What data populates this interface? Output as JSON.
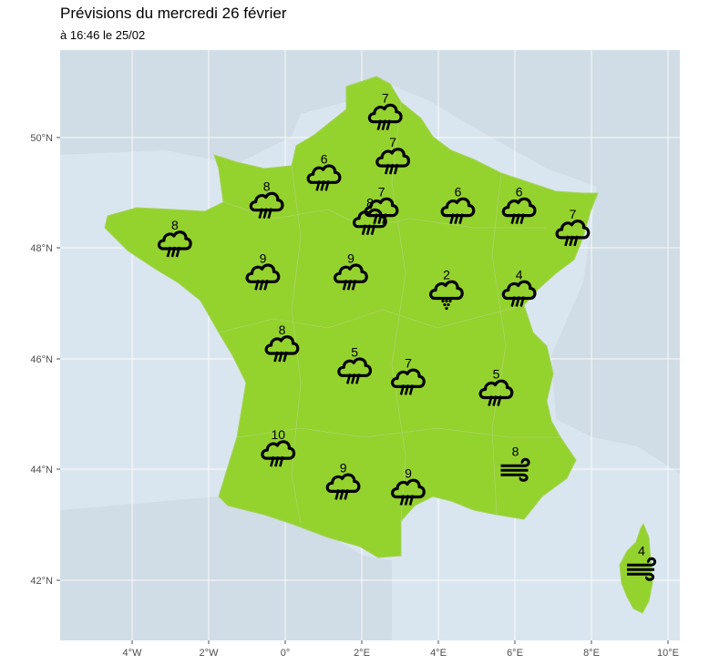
{
  "header": {
    "title": "Prévisions du mercredi 26 février",
    "subtitle": "à 16:46 le 25/02"
  },
  "colors": {
    "sea": "#dae6ef",
    "land_other": "#d0dde6",
    "france": "#94d22e",
    "border": "#a5d25c",
    "grid": "#ffffff",
    "icon": "#000000"
  },
  "axes": {
    "x_ticks": [
      "4°W",
      "2°W",
      "0°",
      "2°E",
      "4°E",
      "6°E",
      "8°E",
      "10°E"
    ],
    "y_ticks": [
      "42°N",
      "44°N",
      "46°N",
      "48°N",
      "50°N"
    ]
  },
  "map_data": {
    "type": "weather-map",
    "lon_range": [
      -5.9,
      10.3
    ],
    "lat_range": [
      40.9,
      51.6
    ],
    "stations": [
      {
        "lon": 2.6,
        "lat": 50.4,
        "value": "7",
        "icon": "rain-cloud-icon"
      },
      {
        "lon": 1.0,
        "lat": 49.3,
        "value": "6",
        "icon": "rain-cloud-icon"
      },
      {
        "lon": 2.8,
        "lat": 49.6,
        "value": "7",
        "icon": "rain-cloud-icon"
      },
      {
        "lon": -0.5,
        "lat": 48.8,
        "value": "8",
        "icon": "rain-cloud-icon"
      },
      {
        "lon": 2.2,
        "lat": 48.5,
        "value": "8",
        "icon": "rain-cloud-icon"
      },
      {
        "lon": 2.5,
        "lat": 48.7,
        "value": "7",
        "icon": "rain-cloud-icon"
      },
      {
        "lon": 4.5,
        "lat": 48.7,
        "value": "6",
        "icon": "rain-cloud-icon"
      },
      {
        "lon": 6.1,
        "lat": 48.7,
        "value": "6",
        "icon": "rain-cloud-icon"
      },
      {
        "lon": 7.5,
        "lat": 48.3,
        "value": "7",
        "icon": "rain-cloud-icon"
      },
      {
        "lon": -2.9,
        "lat": 48.1,
        "value": "8",
        "icon": "rain-cloud-icon"
      },
      {
        "lon": -0.6,
        "lat": 47.5,
        "value": "9",
        "icon": "rain-cloud-icon"
      },
      {
        "lon": 1.7,
        "lat": 47.5,
        "value": "9",
        "icon": "rain-cloud-icon"
      },
      {
        "lon": 4.2,
        "lat": 47.2,
        "value": "2",
        "icon": "snow-cloud-icon"
      },
      {
        "lon": 6.1,
        "lat": 47.2,
        "value": "4",
        "icon": "rain-cloud-icon"
      },
      {
        "lon": -0.1,
        "lat": 46.2,
        "value": "8",
        "icon": "rain-cloud-icon"
      },
      {
        "lon": 1.8,
        "lat": 45.8,
        "value": "5",
        "icon": "rain-cloud-icon"
      },
      {
        "lon": 3.2,
        "lat": 45.6,
        "value": "7",
        "icon": "rain-cloud-icon"
      },
      {
        "lon": 5.5,
        "lat": 45.4,
        "value": "5",
        "icon": "rain-cloud-icon"
      },
      {
        "lon": -0.2,
        "lat": 44.3,
        "value": "10",
        "icon": "rain-cloud-icon"
      },
      {
        "lon": 1.5,
        "lat": 43.7,
        "value": "9",
        "icon": "rain-cloud-icon"
      },
      {
        "lon": 3.2,
        "lat": 43.6,
        "value": "9",
        "icon": "rain-cloud-icon"
      },
      {
        "lon": 6.0,
        "lat": 44.0,
        "value": "8",
        "icon": "wind-icon"
      },
      {
        "lon": 9.3,
        "lat": 42.2,
        "value": "4",
        "icon": "wind-icon"
      }
    ]
  }
}
